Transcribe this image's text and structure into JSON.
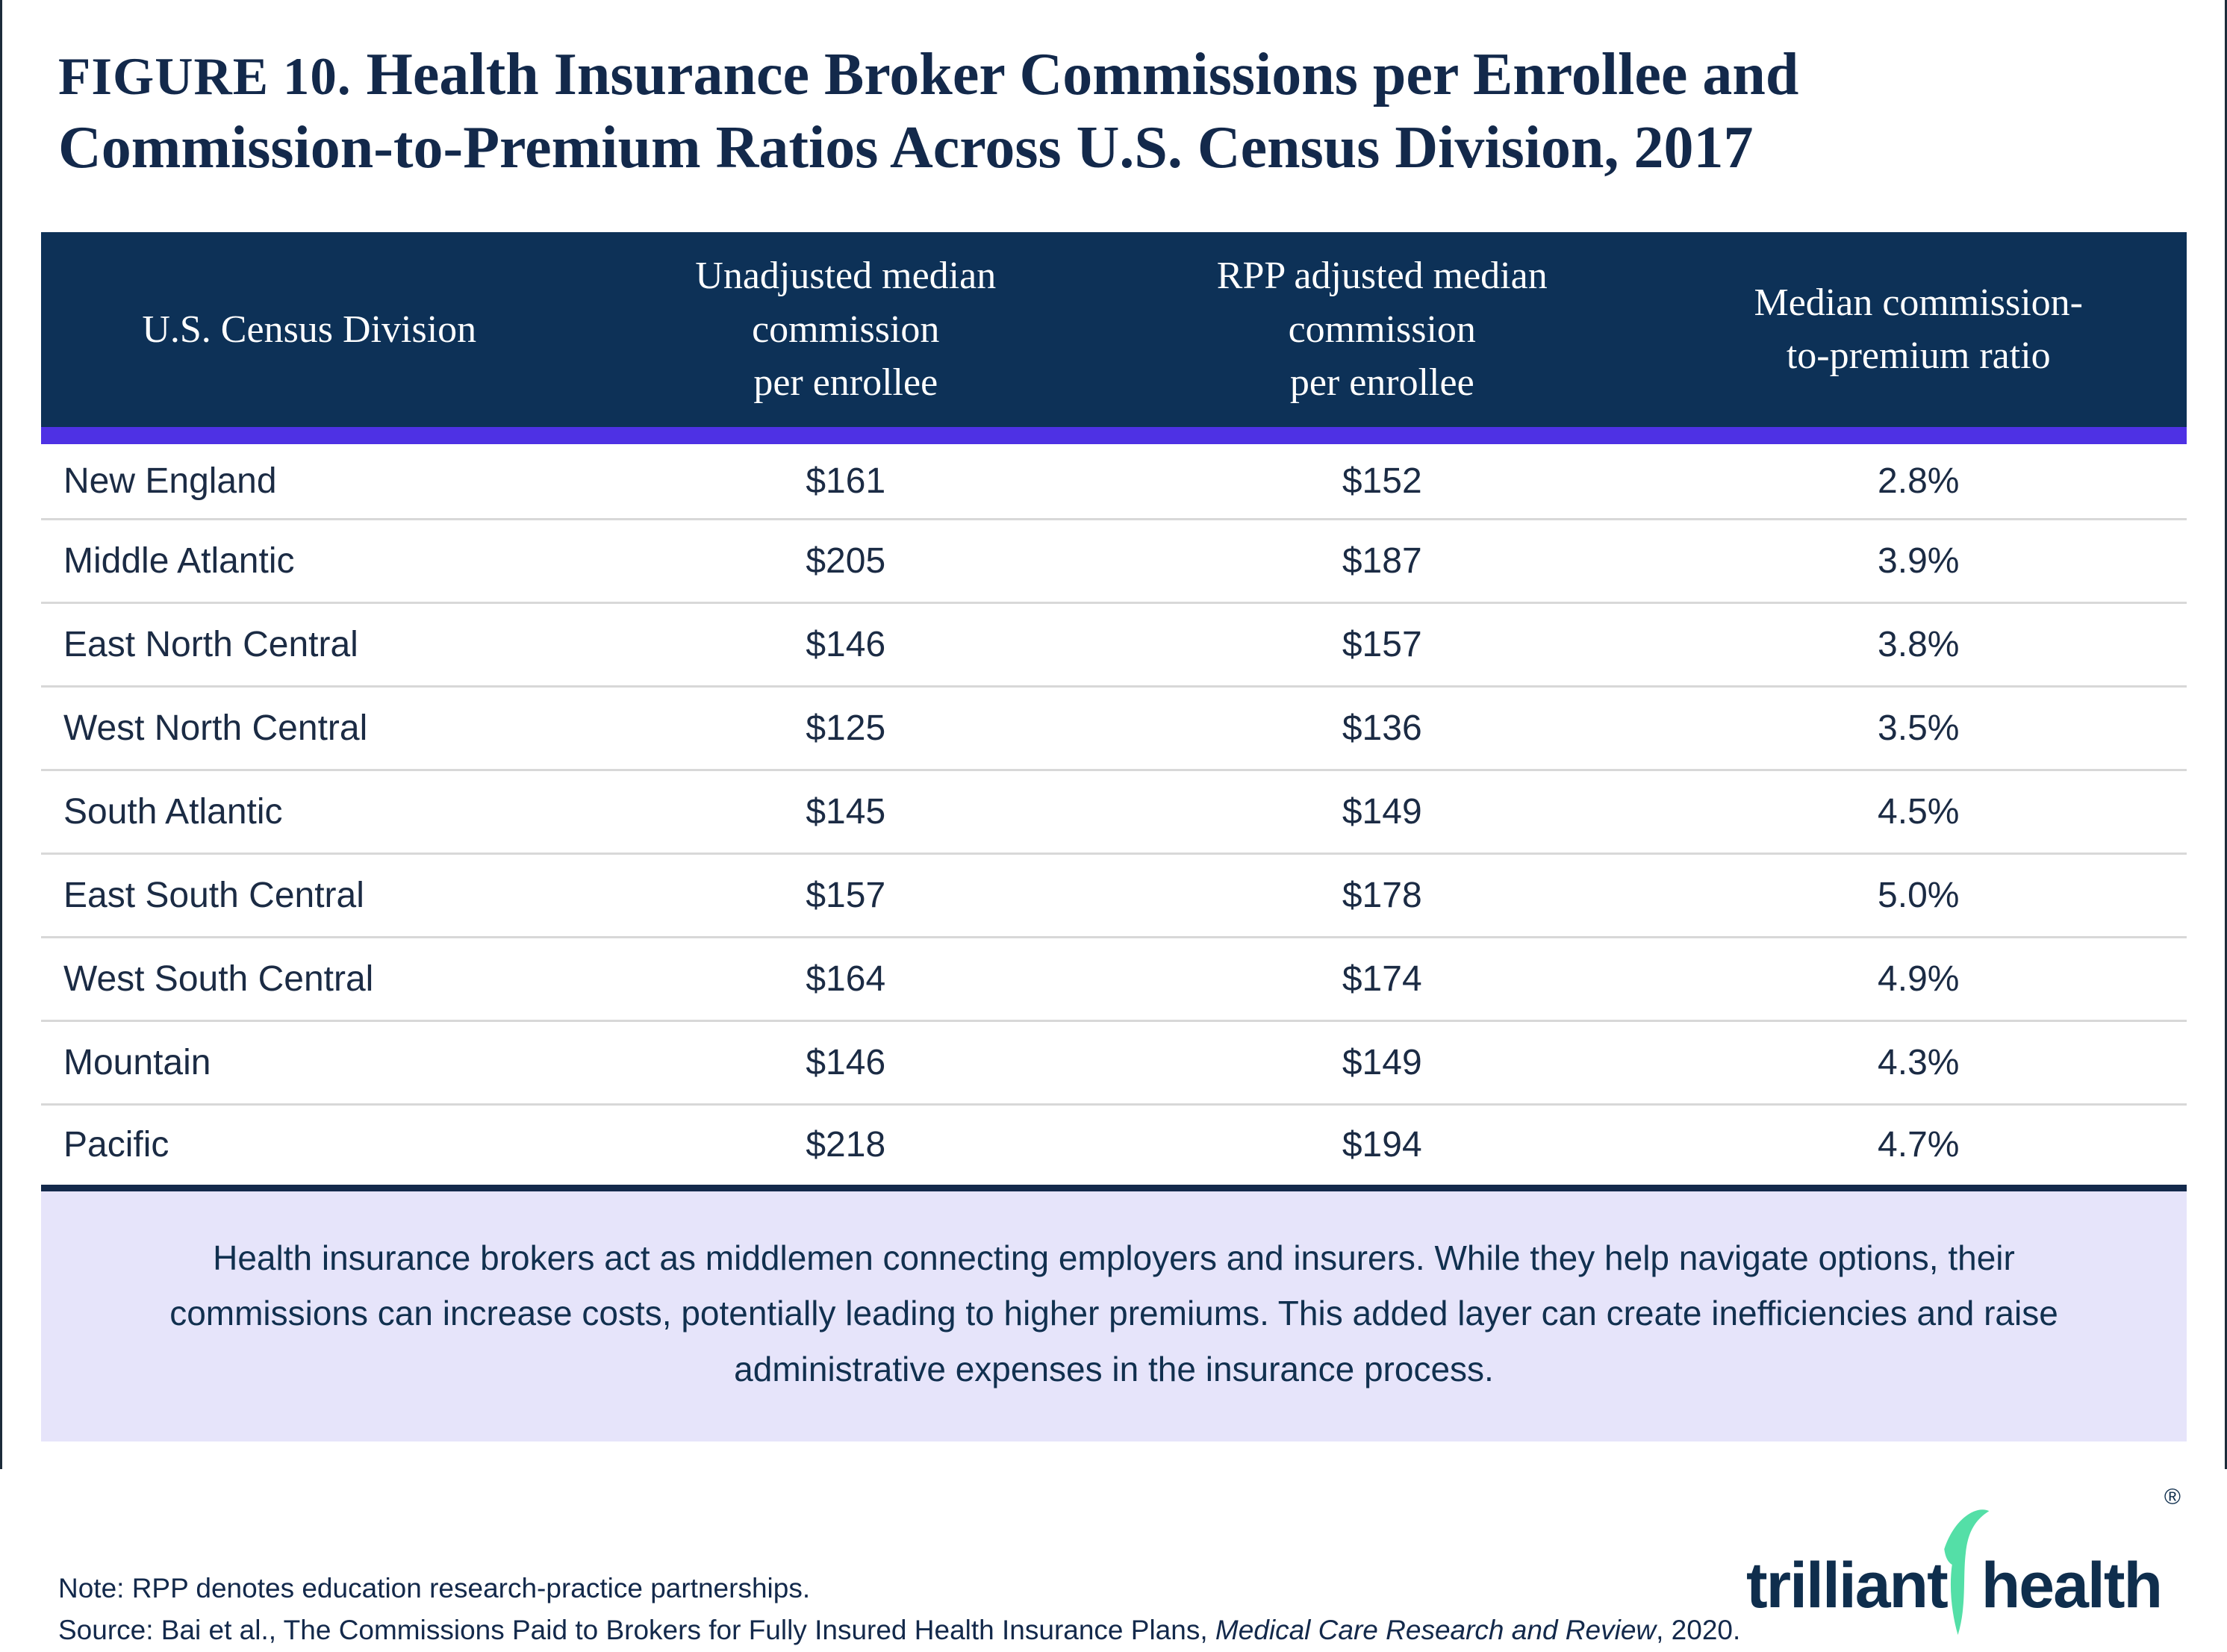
{
  "title": {
    "label": "FIGURE 10.",
    "text": "Health Insurance Broker Commissions per Enrollee and Commission-to-Premium Ratios Across U.S. Census Division, 2017"
  },
  "chart_data": {
    "type": "table",
    "columns": [
      "U.S. Census Division",
      "Unadjusted median\ncommission\nper enrollee",
      "RPP adjusted median\ncommission\nper enrollee",
      "Median commission-\nto-premium ratio"
    ],
    "rows": [
      {
        "division": "New England",
        "unadjusted": "$161",
        "rpp_adjusted": "$152",
        "ratio": "2.8%"
      },
      {
        "division": "Middle Atlantic",
        "unadjusted": "$205",
        "rpp_adjusted": "$187",
        "ratio": "3.9%"
      },
      {
        "division": "East North Central",
        "unadjusted": "$146",
        "rpp_adjusted": "$157",
        "ratio": "3.8%"
      },
      {
        "division": "West North Central",
        "unadjusted": "$125",
        "rpp_adjusted": "$136",
        "ratio": "3.5%"
      },
      {
        "division": "South Atlantic",
        "unadjusted": "$145",
        "rpp_adjusted": "$149",
        "ratio": "4.5%"
      },
      {
        "division": "East South Central",
        "unadjusted": "$157",
        "rpp_adjusted": "$178",
        "ratio": "5.0%"
      },
      {
        "division": "West South Central",
        "unadjusted": "$164",
        "rpp_adjusted": "$174",
        "ratio": "4.9%"
      },
      {
        "division": "Mountain",
        "unadjusted": "$146",
        "rpp_adjusted": "$149",
        "ratio": "4.3%"
      },
      {
        "division": "Pacific",
        "unadjusted": "$218",
        "rpp_adjusted": "$194",
        "ratio": "4.7%"
      }
    ]
  },
  "note_box": {
    "text": "Health insurance brokers act as middlemen connecting employers and insurers. While they help navigate options, their commissions can increase costs, potentially leading to higher premiums. This added layer can create inefficiencies and raise administrative expenses in the insurance process."
  },
  "footnotes": {
    "note": "Note: RPP denotes education research-practice partnerships.",
    "source_prefix": "Source: Bai et al., The Commissions Paid to Brokers for Fully Insured Health Insurance Plans, ",
    "source_journal": "Medical Care Research and Review",
    "source_suffix": ", 2020."
  },
  "logo": {
    "word1": "trilliant",
    "word2": "health",
    "registered_mark": "®"
  },
  "colors": {
    "header_bg": "#0d3157",
    "accent_bar": "#4e31e4",
    "navy_text": "#13294b",
    "row_divider": "#d8d8d8",
    "note_box_bg": "#e6e4fa",
    "logo_teal": "#54dfa7"
  }
}
